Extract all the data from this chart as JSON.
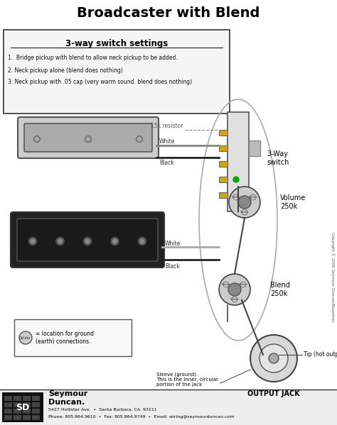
{
  "title": "Broadcaster with Blend",
  "title_fontsize": 14,
  "background_color": "#ffffff",
  "box_title": "3-way switch settings",
  "box_lines": [
    "1.  Bridge pickup with blend to allow neck pickup to be added.",
    "2. Neck pickup alone (blend does nothing)",
    "3. Neck pickup with .05 cap (very warm sound. blend does nothing)"
  ],
  "labels": {
    "resistor": "15k resistor",
    "switch": "3-Way\nswitch",
    "volume": "Volume\n250k",
    "blend": "Blend\n250k",
    "output": "OUTPUT JACK",
    "sleeve": "Sleeve (ground).\nThis is the inner, circular\nportion of the jack",
    "ground_note": "= location for ground\n(earth) connections.",
    "solder": "Solder",
    "white1": "White",
    "black1": "Black",
    "white2": "White",
    "black2": "Black",
    "tip": "Tip (hot output)",
    "copyright": "Copyright © 2006 Seymour Duncan/Basslines",
    "company_name": "Seymour\nDuncan.",
    "address": "5427 Hollister Ave.  •  Santa Barbara, CA. 93111",
    "phone": "Phone: 805.964.9610  •  Fax: 805.964.9749  •  Email: wiring@seymourduncan.com"
  },
  "colors": {
    "wire_white": "#dddddd",
    "wire_black": "#222222",
    "wire_gray": "#888888",
    "pickup_body_light": "#cccccc",
    "pickup_body_dark": "#222222",
    "switch_color": "#e0e0e0",
    "lug_color": "#d4a800",
    "pot_color": "#cccccc",
    "pot_inner": "#888888",
    "jack_color": "#d8d8d8",
    "green_dot": "#00aa00",
    "box_bg": "#f5f5f5",
    "solder_fill": "#cccccc",
    "logo_bg": "#111111",
    "bottom_bar": "#eeeeee"
  }
}
